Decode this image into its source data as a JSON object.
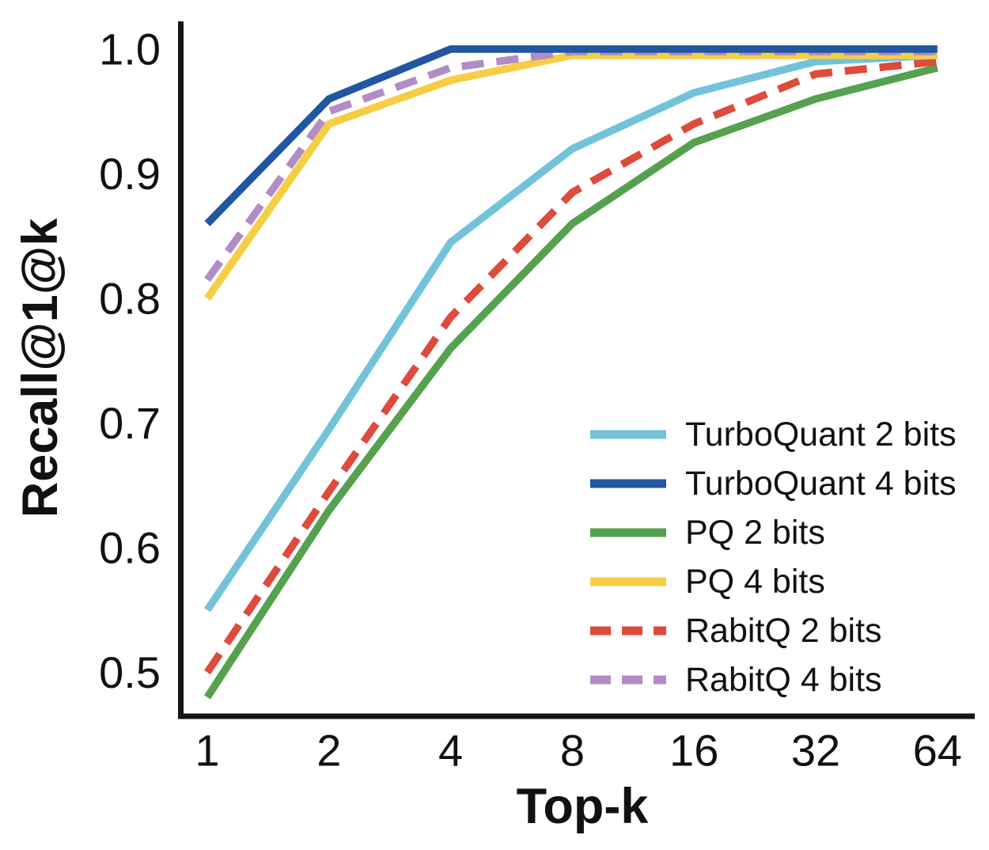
{
  "figure": {
    "background": "#ffffff",
    "text_color": "#111111",
    "spine_color": "#161616"
  },
  "chart_data": {
    "type": "line",
    "title": "",
    "xlabel": "Top-k",
    "ylabel": "Recall@1@k",
    "x_scale": "log2",
    "x": [
      1,
      2,
      4,
      8,
      16,
      32,
      64
    ],
    "x_tick_labels": [
      "1",
      "2",
      "4",
      "8",
      "16",
      "32",
      "64"
    ],
    "y_ticks": [
      1.0,
      0.9,
      0.8,
      0.7,
      0.6,
      0.5
    ],
    "y_tick_labels": [
      "1.0",
      "0.9",
      "0.8",
      "0.7",
      "0.6",
      "0.5"
    ],
    "ylim": [
      0.47,
      1.02
    ],
    "grid": false,
    "legend_position": "inside-right-middle",
    "series": [
      {
        "name": "TurboQuant 2 bits",
        "color": "#72C3D9",
        "style": "solid",
        "values": [
          0.55,
          0.695,
          0.845,
          0.92,
          0.965,
          0.99,
          0.995
        ]
      },
      {
        "name": "TurboQuant 4 bits",
        "color": "#2056A2",
        "style": "solid",
        "values": [
          0.86,
          0.96,
          1.0,
          1.0,
          1.0,
          1.0,
          1.0
        ]
      },
      {
        "name": "PQ 2 bits",
        "color": "#55A14F",
        "style": "solid",
        "values": [
          0.48,
          0.63,
          0.76,
          0.86,
          0.925,
          0.96,
          0.985
        ]
      },
      {
        "name": "PQ 4 bits",
        "color": "#F5CE44",
        "style": "solid",
        "values": [
          0.8,
          0.94,
          0.975,
          0.995,
          0.995,
          0.995,
          0.995
        ]
      },
      {
        "name": "RabitQ 2 bits",
        "color": "#DE4A3C",
        "style": "dashed",
        "values": [
          0.5,
          0.645,
          0.785,
          0.885,
          0.94,
          0.98,
          0.99
        ]
      },
      {
        "name": "RabitQ 4 bits",
        "color": "#B28CC5",
        "style": "dashed",
        "values": [
          0.815,
          0.95,
          0.985,
          0.998,
          0.998,
          0.998,
          0.998
        ]
      }
    ]
  }
}
